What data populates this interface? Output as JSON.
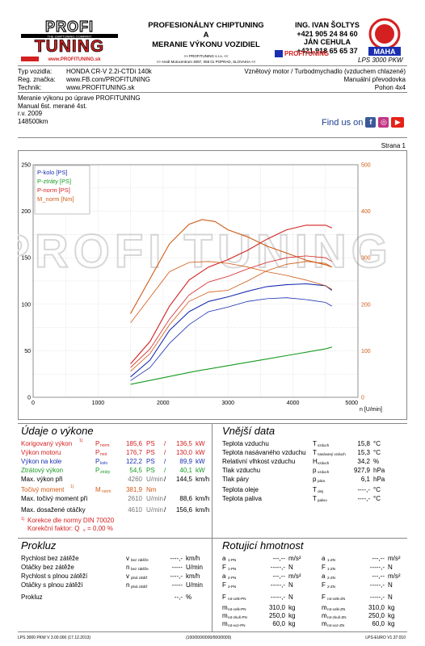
{
  "header": {
    "logo_text": "PROFI TUNING",
    "logo_tag": "THE CHIPTUNING COMPANY",
    "logo_url": "www.PROFITUNING.sk",
    "title_lines": [
      "PROFESIONÁLNY CHIPTUNING",
      "A",
      "MERANIE VÝKONU VOZIDIEL"
    ],
    "company_line": ">> PROFITUNING s.r.o. <<",
    "address_line": ">> Areál Motocentrum 3097, 058 01 POPRAD, SLOVAKIA <<",
    "contacts": [
      "ING. IVAN ŠOLTYS",
      "+421 905 24 84 60",
      "JÁN CEHULA",
      "+421 918 65 65 37"
    ],
    "profi_small": "PROFITUNING",
    "maha": "MAHA",
    "lps": "LPS 3000 PKW"
  },
  "vehicle": {
    "typ_label": "Typ vozidla:",
    "typ": "HONDA CR-V 2.2i-CTDi 140k",
    "reg_label": "Reg. značka:",
    "reg": "www.FB.com/PROFITUNING",
    "tech_label": "Technik:",
    "tech": "www.PROFITUNING.sk",
    "engine": "Vznětový motor / Turbodmychadlo (vzduchem chlazené)",
    "gearbox": "Manuální převodovka",
    "drive": "Pohon 4x4"
  },
  "notes": [
    "Meranie výkonu po úprave PROFITUNING",
    "Manual 6st. merané 4st.",
    "r.v. 2009",
    "148500km"
  ],
  "find_us": "Find us on",
  "page": "Strana 1",
  "chart_data": {
    "type": "line",
    "xlabel": "n [U/min]",
    "xlim": [
      0,
      5000
    ],
    "xticks": [
      "0",
      "1000",
      "2000",
      "3000",
      "4000",
      "5000"
    ],
    "ylim_left": [
      0,
      250
    ],
    "yticks_left": [
      "0",
      "50",
      "100",
      "150",
      "200",
      "250"
    ],
    "ylim_right": [
      0,
      500
    ],
    "yticks_right": [
      "0",
      "100",
      "200",
      "300",
      "400",
      "500"
    ],
    "grid": true,
    "legend_position": "top-left",
    "legend": [
      "P-kolo [PS]",
      "P-ztráty [PS]",
      "P-norm [PS]",
      "M_norm [Nm]"
    ],
    "series": [
      {
        "name": "P-kolo [PS]",
        "color": "#1a2fb0",
        "axis": "left",
        "x": [
          1500,
          1800,
          2100,
          2400,
          2700,
          3000,
          3300,
          3600,
          3900,
          4200,
          4500,
          4600
        ],
        "y": [
          22,
          40,
          72,
          92,
          103,
          108,
          114,
          119,
          121,
          122,
          120,
          115
        ]
      },
      {
        "name": "P-ztráty [PS]",
        "color": "#169a20",
        "axis": "left",
        "x": [
          1500,
          2000,
          2500,
          3000,
          3500,
          4000,
          4500,
          4600
        ],
        "y": [
          14,
          21,
          28,
          34,
          40,
          46,
          52,
          54
        ]
      },
      {
        "name": "P-norm [PS]",
        "color": "#d42020",
        "axis": "left",
        "x": [
          1500,
          1800,
          2100,
          2400,
          2700,
          3000,
          3300,
          3600,
          3900,
          4200,
          4500,
          4600
        ],
        "y": [
          36,
          60,
          98,
          126,
          140,
          148,
          158,
          170,
          180,
          185,
          185,
          182
        ]
      },
      {
        "name": "M_norm [Nm]",
        "color": "#d05a14",
        "axis": "right",
        "x": [
          1500,
          1800,
          2100,
          2400,
          2600,
          2800,
          3000,
          3300,
          3600,
          3900,
          4200,
          4500,
          4600
        ],
        "y": [
          180,
          255,
          330,
          372,
          382,
          378,
          360,
          345,
          325,
          310,
          295,
          285,
          280
        ]
      },
      {
        "name": "",
        "color": "#d05a14",
        "axis": "left",
        "x": [
          1500,
          1800,
          2100,
          2400,
          2700,
          3000,
          3300,
          3600,
          3900,
          4200,
          4500,
          4600
        ],
        "y": [
          28,
          47,
          78,
          103,
          113,
          115,
          125,
          136,
          143,
          146,
          144,
          140
        ]
      },
      {
        "name": "",
        "color": "#1a2fb0",
        "axis": "left",
        "x": [
          1500,
          1800,
          2100,
          2400,
          2700,
          3000,
          3300,
          3600,
          3900,
          4200,
          4500,
          4600
        ],
        "y": [
          18,
          32,
          58,
          78,
          92,
          97,
          103,
          106,
          107,
          105,
          102,
          98
        ]
      },
      {
        "name": "",
        "color": "#d42020",
        "axis": "left",
        "x": [
          1500,
          1800,
          2100,
          2400,
          2700,
          3000,
          3300,
          3600,
          3900,
          4200,
          4500,
          4600
        ],
        "y": [
          32,
          52,
          84,
          110,
          124,
          130,
          138,
          145,
          150,
          152,
          150,
          146
        ]
      },
      {
        "name": "",
        "color": "#d05a14",
        "axis": "right",
        "x": [
          1500,
          1800,
          2100,
          2400,
          2700,
          3000,
          3300,
          3600,
          3900,
          4200,
          4500,
          4600
        ],
        "y": [
          160,
          215,
          270,
          290,
          292,
          288,
          280,
          270,
          262,
          252,
          240,
          232
        ]
      }
    ]
  },
  "perf": {
    "title": "Údaje o výkone",
    "korig_label": "Korigovaný výkon",
    "korig_sym": "P",
    "korig_sub": "norm",
    "korig_ps": "185,6",
    "korig_kw": "136,5",
    "motor_label": "Výkon motoru",
    "motor_sym": "P",
    "motor_sub": "mot",
    "motor_ps": "176,7",
    "motor_kw": "130,0",
    "kolo_label": "Výkon na kole",
    "kolo_sym": "P",
    "kolo_sub": "kolo",
    "kolo_ps": "122,2",
    "kolo_kw": "89,9",
    "ztrat_label": "Ztrátový výkon",
    "ztrat_sym": "P",
    "ztrat_sub": "ztráty",
    "ztrat_ps": "54,5",
    "ztrat_kw": "40,1",
    "maxv_label": "Max. výkon při",
    "maxv_rpm": "4260",
    "maxv_kmh": "144,5",
    "moment_label": "Točivý moment",
    "moment_sym": "M",
    "moment_sub": "norm",
    "moment_val": "381,9",
    "moment_unit": "Nm",
    "maxm_label": "Max. točivý moment při",
    "maxm_rpm": "2610",
    "maxm_kmh": "88,6",
    "maxo_label": "Max. dosažené otáčky",
    "maxo_rpm": "4610",
    "maxo_kmh": "156,6",
    "unit_ps": "PS",
    "unit_kw": "kW",
    "unit_rpm": "U/min",
    "unit_kmh": "km/h",
    "slash": "/",
    "din": "Korekce dle normy DIN 70020",
    "korekcni": "Korekční faktor: Q",
    "korekcni_sub": "v",
    "korekcni_val": "=   0,00 %",
    "footnote_mark": "1)"
  },
  "ext": {
    "title": "Vnější data",
    "rows": [
      {
        "label": "Teplota vzduchu",
        "sym": "T",
        "sub": "vzduch",
        "val": "15,8",
        "unit": "°C"
      },
      {
        "label": "Teplota nasávaného vzduchu",
        "sym": "T",
        "sub": "nasávaný vzduch",
        "val": "15,3",
        "unit": "°C"
      },
      {
        "label": "Relativní vlhkost vzduchu",
        "sym": "H",
        "sub": "vzduch",
        "val": "34,2",
        "unit": "%"
      },
      {
        "label": "Tlak vzduchu",
        "sym": "p",
        "sub": "vzduch",
        "val": "927,9",
        "unit": "hPa"
      },
      {
        "label": "Tlak páry",
        "sym": "p",
        "sub": "pára",
        "val": "6,1",
        "unit": "hPa"
      },
      {
        "label": "Teplota oleje",
        "sym": "T",
        "sub": "olej",
        "val": "----,-",
        "unit": "°C"
      },
      {
        "label": "Teplota paliva",
        "sym": "T",
        "sub": "palivo",
        "val": "----,-",
        "unit": "°C"
      }
    ]
  },
  "prokluz": {
    "title": "Prokluz",
    "rows": [
      {
        "label": "Rychlost bez zátěže",
        "sym": "v",
        "sub": "bez zátěže",
        "val": "----,-",
        "unit": "km/h"
      },
      {
        "label": "Otáčky bez zátěže",
        "sym": "n",
        "sub": "bez zátěže",
        "val": "-----",
        "unit": "U/min"
      },
      {
        "label": "Rychlost s plnou zátěží",
        "sym": "v",
        "sub": "plná zátěž",
        "val": "----,-",
        "unit": "km/h"
      },
      {
        "label": "Otáčky s plnou zátěží",
        "sym": "n",
        "sub": "plná zátěž",
        "val": "-----",
        "unit": "U/min"
      },
      {
        "label": "Prokluz",
        "sym": "",
        "sub": "",
        "val": "--,-",
        "unit": "%"
      }
    ]
  },
  "rot": {
    "title": "Rotujicí hmotnost",
    "left": [
      {
        "sym": "a",
        "sub": "1-PN",
        "val": "---,--",
        "unit": "m/s²"
      },
      {
        "sym": "F",
        "sub": "1-PN",
        "val": "-----,-",
        "unit": "N"
      },
      {
        "sym": "a",
        "sub": "2-PN",
        "val": "---,--",
        "unit": "m/s²"
      },
      {
        "sym": "F",
        "sub": "2-PN",
        "val": "-----,-",
        "unit": "N"
      },
      {
        "sym": "F",
        "sub": "rot-celk-PN",
        "val": "-----,-",
        "unit": "N"
      },
      {
        "sym": "m",
        "sub": "rot-celk-PN",
        "val": "310,0",
        "unit": "kg"
      },
      {
        "sym": "m",
        "sub": "rot-zkuš-PN",
        "val": "250,0",
        "unit": "kg"
      },
      {
        "sym": "m",
        "sub": "rot-voz-PN",
        "val": "60,0",
        "unit": "kg"
      }
    ],
    "right": [
      {
        "sym": "a",
        "sub": "1-ZN",
        "val": "---,--",
        "unit": "m/s²"
      },
      {
        "sym": "F",
        "sub": "1-ZN",
        "val": "-----,-",
        "unit": "N"
      },
      {
        "sym": "a",
        "sub": "2-ZN",
        "val": "---,--",
        "unit": "m/s²"
      },
      {
        "sym": "F",
        "sub": "2-ZN",
        "val": "-----,-",
        "unit": "N"
      },
      {
        "sym": "F",
        "sub": "rot-celk-ZN",
        "val": "-----,-",
        "unit": "N"
      },
      {
        "sym": "m",
        "sub": "rot-celk-ZN",
        "val": "310,0",
        "unit": "kg"
      },
      {
        "sym": "m",
        "sub": "rot-zkuš-ZN",
        "val": "250,0",
        "unit": "kg"
      },
      {
        "sym": "m",
        "sub": "rot-voz-ZN",
        "val": "60,0",
        "unit": "kg"
      }
    ]
  },
  "footer": {
    "left": "LPS 3000 PKW V 3.00.000 (17.12.2013)",
    "center": "(100/000/0000/000/0000)",
    "right": "LPS-EURO V1.37.010"
  }
}
